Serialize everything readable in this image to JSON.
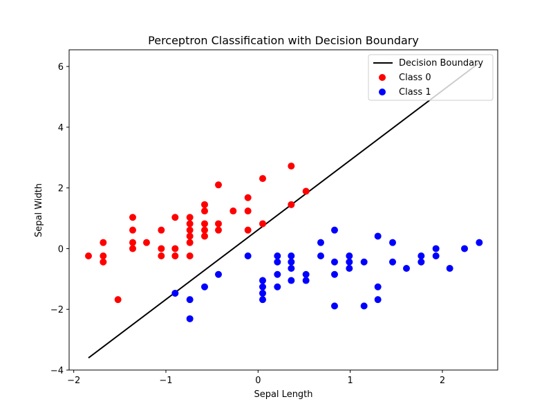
{
  "chart_data": {
    "type": "scatter",
    "title": "Perceptron Classification with Decision Boundary",
    "xlabel": "Sepal Length",
    "ylabel": "Sepal Width",
    "xlim": [
      -2.05,
      2.6
    ],
    "ylim": [
      -4.0,
      6.55
    ],
    "xticks": [
      -2,
      -1,
      0,
      1,
      2
    ],
    "yticks": [
      -4,
      -2,
      0,
      2,
      4,
      6
    ],
    "grid": false,
    "legend_position": "top-right",
    "colors": {
      "class0": "#ff0000",
      "class1": "#0000ff",
      "line": "#000000"
    },
    "decision_boundary": {
      "name": "Decision Boundary",
      "x": [
        -1.84,
        2.39
      ],
      "y": [
        -3.6,
        6.1
      ]
    },
    "series": [
      {
        "name": "Class 0",
        "points": [
          [
            -1.84,
            -0.24
          ],
          [
            -1.68,
            0.2
          ],
          [
            -1.68,
            -0.24
          ],
          [
            -1.68,
            -0.44
          ],
          [
            -1.52,
            -1.68
          ],
          [
            -1.36,
            1.03
          ],
          [
            -1.36,
            0.61
          ],
          [
            -1.36,
            0.2
          ],
          [
            -1.36,
            0.0
          ],
          [
            -1.21,
            0.2
          ],
          [
            -1.05,
            0.61
          ],
          [
            -1.05,
            0.0
          ],
          [
            -1.05,
            -0.24
          ],
          [
            -0.9,
            1.03
          ],
          [
            -0.9,
            0.0
          ],
          [
            -0.9,
            -0.24
          ],
          [
            -0.74,
            1.03
          ],
          [
            -0.74,
            0.82
          ],
          [
            -0.74,
            0.61
          ],
          [
            -0.74,
            0.41
          ],
          [
            -0.74,
            0.2
          ],
          [
            -0.74,
            -0.24
          ],
          [
            -0.58,
            1.45
          ],
          [
            -0.58,
            1.24
          ],
          [
            -0.58,
            0.82
          ],
          [
            -0.58,
            0.61
          ],
          [
            -0.58,
            0.41
          ],
          [
            -0.43,
            2.1
          ],
          [
            -0.43,
            0.82
          ],
          [
            -0.43,
            0.61
          ],
          [
            -0.27,
            1.24
          ],
          [
            -0.11,
            1.68
          ],
          [
            -0.11,
            1.24
          ],
          [
            -0.11,
            0.61
          ],
          [
            0.05,
            2.31
          ],
          [
            0.05,
            0.82
          ],
          [
            0.36,
            2.72
          ],
          [
            0.36,
            1.45
          ],
          [
            0.52,
            1.89
          ]
        ]
      },
      {
        "name": "Class 1",
        "points": [
          [
            -0.9,
            -1.47
          ],
          [
            -0.74,
            -1.68
          ],
          [
            -0.74,
            -2.31
          ],
          [
            -0.58,
            -1.26
          ],
          [
            -0.43,
            -0.85
          ],
          [
            -0.11,
            -0.24
          ],
          [
            0.05,
            -1.05
          ],
          [
            0.05,
            -1.26
          ],
          [
            0.05,
            -1.47
          ],
          [
            0.05,
            -1.68
          ],
          [
            0.21,
            -0.24
          ],
          [
            0.21,
            -0.44
          ],
          [
            0.21,
            -0.85
          ],
          [
            0.21,
            -1.26
          ],
          [
            0.36,
            -0.24
          ],
          [
            0.36,
            -0.44
          ],
          [
            0.36,
            -0.65
          ],
          [
            0.36,
            -1.05
          ],
          [
            0.52,
            -0.85
          ],
          [
            0.52,
            -1.05
          ],
          [
            0.68,
            0.2
          ],
          [
            0.68,
            -0.24
          ],
          [
            0.83,
            0.61
          ],
          [
            0.83,
            -0.44
          ],
          [
            0.83,
            -0.85
          ],
          [
            0.83,
            -1.89
          ],
          [
            0.99,
            -0.24
          ],
          [
            0.99,
            -0.44
          ],
          [
            0.99,
            -0.65
          ],
          [
            1.15,
            -0.44
          ],
          [
            1.15,
            -1.89
          ],
          [
            1.3,
            0.41
          ],
          [
            1.3,
            -1.26
          ],
          [
            1.3,
            -1.68
          ],
          [
            1.46,
            0.2
          ],
          [
            1.46,
            -0.44
          ],
          [
            1.61,
            -0.65
          ],
          [
            1.77,
            -0.24
          ],
          [
            1.77,
            -0.44
          ],
          [
            1.93,
            0.0
          ],
          [
            1.93,
            -0.24
          ],
          [
            2.08,
            -0.65
          ],
          [
            2.24,
            0.0
          ],
          [
            2.4,
            0.2
          ]
        ]
      }
    ]
  }
}
